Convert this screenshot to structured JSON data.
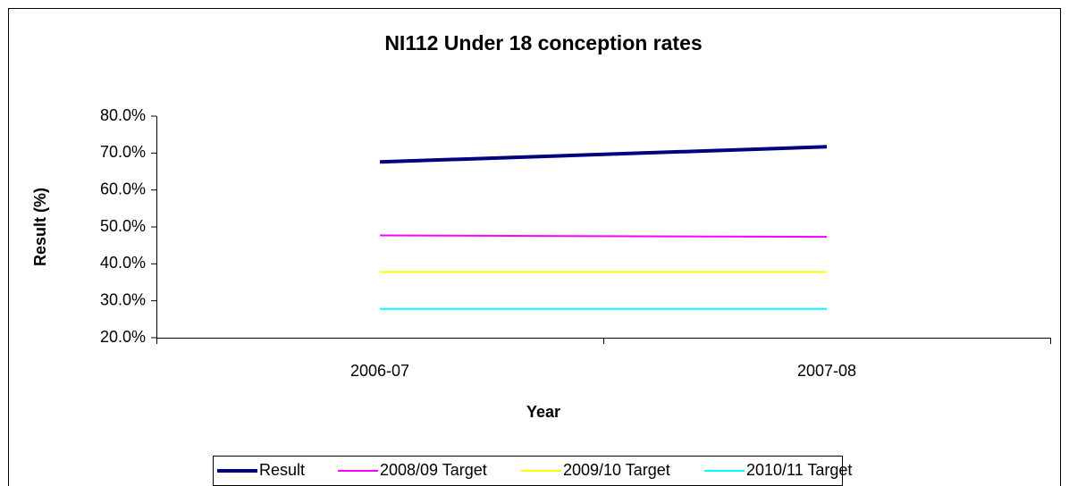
{
  "chart_data": {
    "type": "line",
    "title": "NI112 Under 18 conception rates",
    "xlabel": "Year",
    "ylabel": "Result (%)",
    "categories": [
      "2006-07",
      "2007-08"
    ],
    "series": [
      {
        "name": "Result",
        "color": "#000080",
        "values": [
          67.6,
          71.7
        ]
      },
      {
        "name": "2008/09 Target",
        "color": "#ff00ff",
        "values": [
          47.7,
          47.3
        ]
      },
      {
        "name": "2009/10 Target",
        "color": "#ffff00",
        "values": [
          37.8,
          37.8
        ]
      },
      {
        "name": "2010/11 Target",
        "color": "#00ffff",
        "values": [
          27.8,
          27.8
        ]
      }
    ],
    "ylim": [
      20,
      80
    ],
    "yticks": [
      {
        "value": 20,
        "label": "20.0%"
      },
      {
        "value": 30,
        "label": "30.0%"
      },
      {
        "value": 40,
        "label": "40.0%"
      },
      {
        "value": 50,
        "label": "50.0%"
      },
      {
        "value": 60,
        "label": "60.0%"
      },
      {
        "value": 70,
        "label": "70.0%"
      },
      {
        "value": 80,
        "label": "80.0%"
      }
    ],
    "legend": "bottom"
  }
}
